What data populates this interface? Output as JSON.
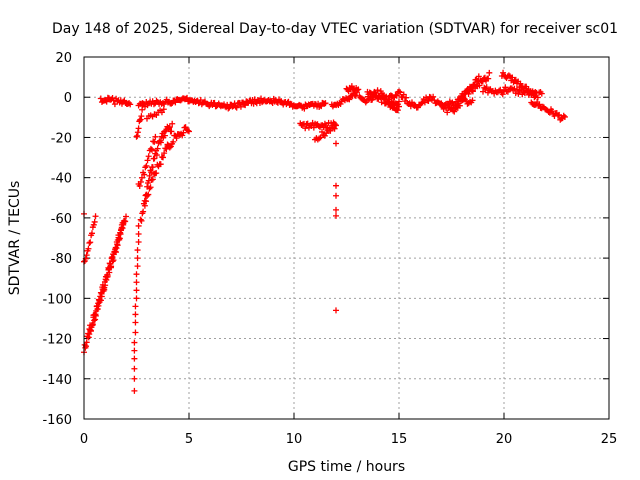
{
  "chart_data": {
    "type": "scatter",
    "title": "Day 148 of 2025, Sidereal Day-to-day VTEC variation (SDTVAR) for receiver sc01",
    "xlabel": "GPS time / hours",
    "ylabel": "SDTVAR / TECUs",
    "xlim": [
      0,
      25
    ],
    "ylim": [
      -160,
      20
    ],
    "xticks": [
      0,
      5,
      10,
      15,
      20,
      25
    ],
    "yticks": [
      20,
      0,
      -20,
      -40,
      -60,
      -80,
      -100,
      -120,
      -140,
      -160
    ],
    "grid": true,
    "marker": "+",
    "color": "#ff0000",
    "segments": [
      {
        "name": "arc-a",
        "x0": 0.0,
        "y0": -125,
        "x1": 1.9,
        "y1": -62,
        "n": 60,
        "jitter": 2.0
      },
      {
        "name": "arc-b",
        "x0": 0.0,
        "y0": -83,
        "x1": 0.55,
        "y1": -60,
        "n": 14,
        "jitter": 1.5
      },
      {
        "name": "arc-c",
        "x0": 0.25,
        "y0": -118,
        "x1": 2.0,
        "y1": -59,
        "n": 45,
        "jitter": 2.0
      },
      {
        "name": "arc-d",
        "x0": 0.8,
        "y0": -1,
        "x1": 2.2,
        "y1": -3,
        "n": 26,
        "jitter": 1.5
      },
      {
        "name": "arc-e",
        "x0": 2.5,
        "y0": -20,
        "x1": 2.8,
        "y1": -5,
        "n": 10,
        "jitter": 1.5
      },
      {
        "name": "arc-f",
        "x0": 2.7,
        "y0": -62,
        "x1": 4.2,
        "y1": -15,
        "n": 40,
        "jitter": 2.0,
        "curve": 0.3
      },
      {
        "name": "arc-g",
        "x0": 2.9,
        "y0": -52,
        "x1": 5.0,
        "y1": -16,
        "n": 40,
        "jitter": 2.0,
        "curve": 0.3
      },
      {
        "name": "arc-h",
        "x0": 2.6,
        "y0": -45,
        "x1": 3.4,
        "y1": -20,
        "n": 16,
        "jitter": 2.0
      },
      {
        "name": "arc-i",
        "x0": 2.6,
        "y0": -4,
        "x1": 4.0,
        "y1": -2,
        "n": 24,
        "jitter": 1.2
      },
      {
        "name": "arc-j",
        "x0": 3.0,
        "y0": -11,
        "x1": 3.8,
        "y1": -6,
        "n": 10,
        "jitter": 1.2
      },
      {
        "name": "arc-k",
        "x0": 4.0,
        "y0": -3,
        "x1": 11.5,
        "y1": -3,
        "n": 150,
        "jitter": 1.2,
        "wave": 1.5
      },
      {
        "name": "arc-l",
        "x0": 10.3,
        "y0": -14,
        "x1": 12.0,
        "y1": -14,
        "n": 30,
        "jitter": 1.5
      },
      {
        "name": "arc-m",
        "x0": 11.0,
        "y0": -21,
        "x1": 12.0,
        "y1": -14,
        "n": 16,
        "jitter": 1.5
      },
      {
        "name": "arc-n",
        "x0": 11.8,
        "y0": -5,
        "x1": 13.0,
        "y1": 2,
        "n": 24,
        "jitter": 1.5
      },
      {
        "name": "arc-o",
        "x0": 12.5,
        "y0": 3,
        "x1": 15.0,
        "y1": -2,
        "n": 50,
        "jitter": 1.8,
        "wave": 2
      },
      {
        "name": "arc-p",
        "x0": 13.5,
        "y0": 3,
        "x1": 15.0,
        "y1": -6,
        "n": 30,
        "jitter": 1.5
      },
      {
        "name": "arc-q",
        "x0": 14.5,
        "y0": 0,
        "x1": 17.8,
        "y1": -5,
        "n": 60,
        "jitter": 1.8,
        "wave": 2
      },
      {
        "name": "arc-r",
        "x0": 17.0,
        "y0": -4,
        "x1": 18.5,
        "y1": -2,
        "n": 26,
        "jitter": 1.5
      },
      {
        "name": "arc-s",
        "x0": 18.0,
        "y0": 0,
        "x1": 19.3,
        "y1": 11,
        "n": 26,
        "jitter": 1.5
      },
      {
        "name": "arc-t",
        "x0": 17.8,
        "y0": -2,
        "x1": 18.8,
        "y1": 10,
        "n": 20,
        "jitter": 1.5
      },
      {
        "name": "arc-u",
        "x0": 19.0,
        "y0": 4,
        "x1": 20.0,
        "y1": 2,
        "n": 18,
        "jitter": 1.5
      },
      {
        "name": "arc-v",
        "x0": 19.9,
        "y0": 12,
        "x1": 21.5,
        "y1": 1,
        "n": 30,
        "jitter": 1.5
      },
      {
        "name": "arc-w",
        "x0": 20.0,
        "y0": 4,
        "x1": 21.8,
        "y1": 1,
        "n": 30,
        "jitter": 1.5
      },
      {
        "name": "arc-x",
        "x0": 21.3,
        "y0": -2,
        "x1": 22.9,
        "y1": -11,
        "n": 30,
        "jitter": 1.5
      }
    ],
    "points": [
      {
        "x": 0.0,
        "y": -58
      },
      {
        "x": 2.4,
        "y": -146
      },
      {
        "x": 2.4,
        "y": -140
      },
      {
        "x": 2.4,
        "y": -135
      },
      {
        "x": 2.4,
        "y": -130
      },
      {
        "x": 2.4,
        "y": -126
      },
      {
        "x": 2.4,
        "y": -122
      },
      {
        "x": 2.45,
        "y": -117
      },
      {
        "x": 2.45,
        "y": -112
      },
      {
        "x": 2.45,
        "y": -108
      },
      {
        "x": 2.45,
        "y": -104
      },
      {
        "x": 2.5,
        "y": -100
      },
      {
        "x": 2.5,
        "y": -96
      },
      {
        "x": 2.5,
        "y": -92
      },
      {
        "x": 2.5,
        "y": -88
      },
      {
        "x": 2.55,
        "y": -84
      },
      {
        "x": 2.55,
        "y": -80
      },
      {
        "x": 2.55,
        "y": -76
      },
      {
        "x": 2.6,
        "y": -72
      },
      {
        "x": 2.6,
        "y": -68
      },
      {
        "x": 2.6,
        "y": -64
      },
      {
        "x": 12.0,
        "y": -23
      },
      {
        "x": 12.0,
        "y": -44
      },
      {
        "x": 12.0,
        "y": -49
      },
      {
        "x": 12.0,
        "y": -56
      },
      {
        "x": 12.0,
        "y": -59
      },
      {
        "x": 12.0,
        "y": -106
      }
    ]
  }
}
